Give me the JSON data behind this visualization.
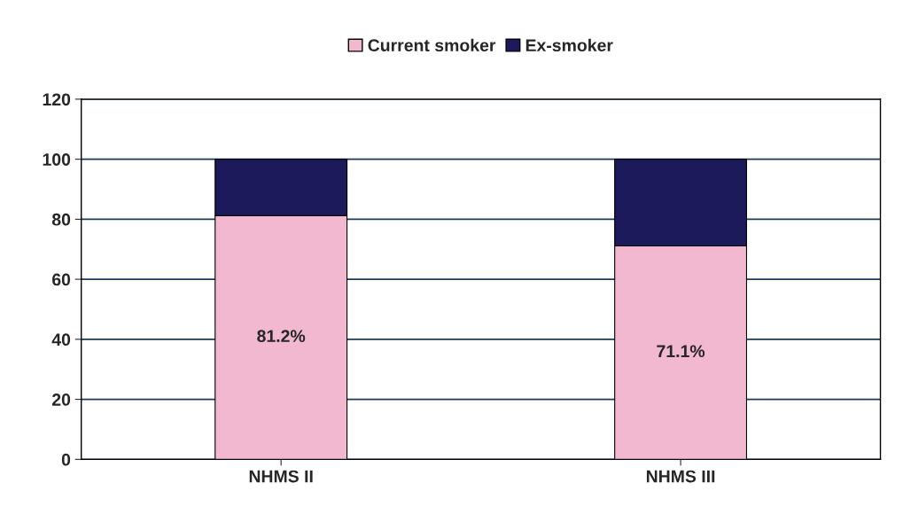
{
  "chart_data": {
    "type": "bar",
    "stacked": true,
    "categories": [
      "NHMS II",
      "NHMS III"
    ],
    "series": [
      {
        "name": "Current smoker",
        "color": "#f2b8d0",
        "values": [
          81.2,
          71.1
        ],
        "value_labels": [
          "81.2%",
          "71.1%"
        ]
      },
      {
        "name": "Ex-smoker",
        "color": "#1c1a5a",
        "values": [
          18.8,
          28.9
        ]
      }
    ],
    "ylim": [
      0,
      120
    ],
    "yticks": [
      0,
      20,
      40,
      60,
      80,
      100,
      120
    ],
    "grid": "y",
    "legend": "top"
  }
}
